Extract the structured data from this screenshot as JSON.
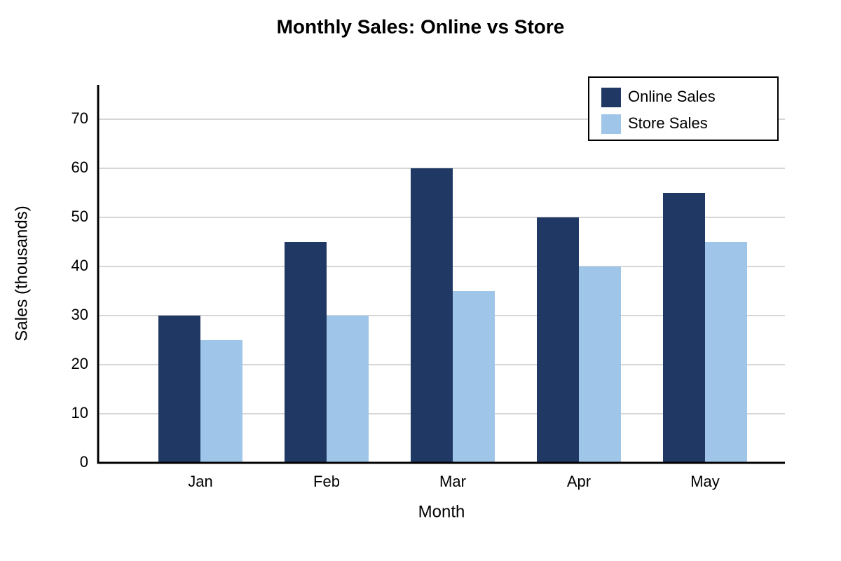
{
  "chart_data": {
    "type": "bar",
    "title": "Monthly Sales: Online vs Store",
    "x_label": "Month",
    "y_label": "Sales (thousands)",
    "categories": [
      "Jan",
      "Feb",
      "Mar",
      "Apr",
      "May"
    ],
    "series": [
      {
        "name": "Online Sales",
        "color": "#1f3864",
        "values": [
          30,
          45,
          60,
          50,
          55
        ]
      },
      {
        "name": "Store Sales",
        "color": "#9fc5e8",
        "values": [
          25,
          30,
          35,
          40,
          45
        ]
      }
    ],
    "ylim": [
      0,
      77
    ],
    "yticks": [
      0,
      10,
      20,
      30,
      40,
      50,
      60,
      70
    ],
    "grid": true,
    "legend": "upper right"
  }
}
